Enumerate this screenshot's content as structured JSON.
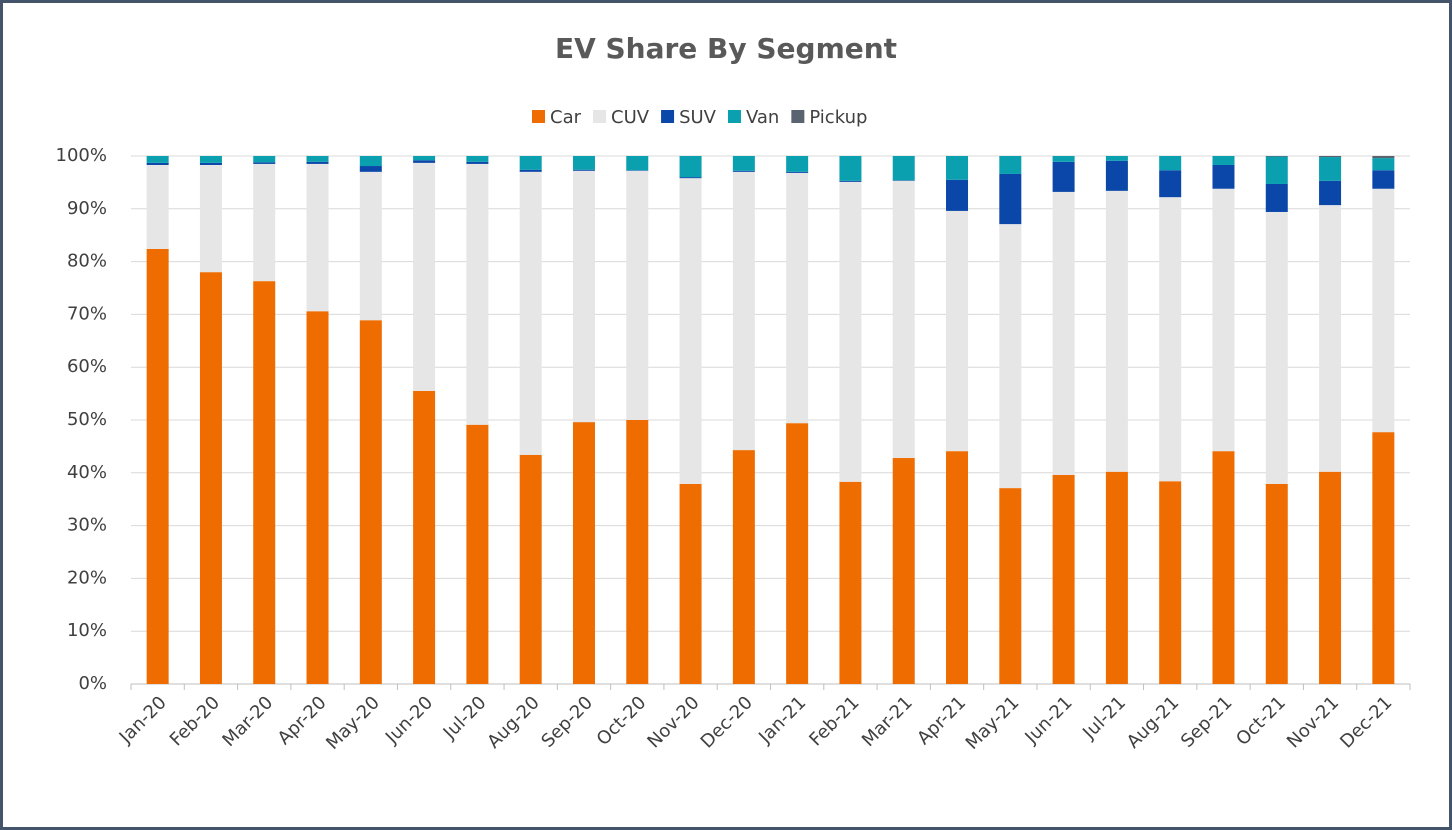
{
  "chart_data": {
    "type": "stacked_bar",
    "title": "EV Share By Segment",
    "categories": [
      "Jan-20",
      "Feb-20",
      "Mar-20",
      "Apr-20",
      "May-20",
      "Jun-20",
      "Jul-20",
      "Aug-20",
      "Sep-20",
      "Oct-20",
      "Nov-20",
      "Dec-20",
      "Jan-21",
      "Feb-21",
      "Mar-21",
      "Apr-21",
      "May-21",
      "Jun-21",
      "Jul-21",
      "Aug-21",
      "Sep-21",
      "Oct-21",
      "Nov-21",
      "Dec-21"
    ],
    "series": [
      {
        "name": "Car",
        "color": "#ee6c00",
        "values": [
          82.4,
          78.0,
          76.3,
          70.6,
          68.9,
          55.5,
          49.1,
          43.4,
          49.6,
          50.0,
          37.9,
          44.3,
          49.4,
          38.3,
          42.8,
          44.1,
          37.1,
          39.6,
          40.2,
          38.4,
          44.1,
          37.9,
          40.2,
          47.7
        ]
      },
      {
        "name": "CUV",
        "color": "#e6e6e6",
        "values": [
          15.9,
          20.3,
          22.2,
          27.9,
          28.1,
          43.2,
          49.4,
          53.6,
          47.6,
          47.2,
          57.9,
          52.7,
          47.4,
          56.8,
          52.5,
          45.5,
          50.0,
          53.6,
          53.2,
          53.8,
          49.7,
          51.5,
          50.5,
          46.1
        ]
      },
      {
        "name": "SUV",
        "color": "#0a47a9",
        "values": [
          0.4,
          0.4,
          0.3,
          0.4,
          1.1,
          0.5,
          0.4,
          0.4,
          0.2,
          0.1,
          0.2,
          0.2,
          0.2,
          0.2,
          0.1,
          5.9,
          9.5,
          5.7,
          5.7,
          5.1,
          4.5,
          5.3,
          4.6,
          3.5
        ]
      },
      {
        "name": "Van",
        "color": "#0aa0b0",
        "values": [
          1.3,
          1.3,
          1.2,
          1.1,
          1.9,
          0.8,
          1.1,
          2.6,
          2.6,
          2.7,
          4.0,
          2.8,
          3.0,
          4.7,
          4.6,
          4.5,
          3.4,
          1.1,
          0.9,
          2.7,
          1.7,
          5.2,
          4.5,
          2.3
        ]
      },
      {
        "name": "Pickup",
        "color": "#5a6470",
        "values": [
          0,
          0,
          0,
          0,
          0,
          0,
          0,
          0,
          0,
          0,
          0,
          0,
          0,
          0,
          0,
          0,
          0,
          0,
          0,
          0,
          0,
          0.1,
          0.2,
          0.4
        ]
      }
    ],
    "ylim": [
      0,
      100
    ],
    "yticks": [
      {
        "value": 0,
        "label": "0%"
      },
      {
        "value": 10,
        "label": "10%"
      },
      {
        "value": 20,
        "label": "20%"
      },
      {
        "value": 30,
        "label": "30%"
      },
      {
        "value": 40,
        "label": "40%"
      },
      {
        "value": 50,
        "label": "50%"
      },
      {
        "value": 60,
        "label": "60%"
      },
      {
        "value": 70,
        "label": "70%"
      },
      {
        "value": 80,
        "label": "80%"
      },
      {
        "value": 90,
        "label": "90%"
      },
      {
        "value": 100,
        "label": "100%"
      }
    ],
    "grid": true,
    "legend": "top"
  }
}
